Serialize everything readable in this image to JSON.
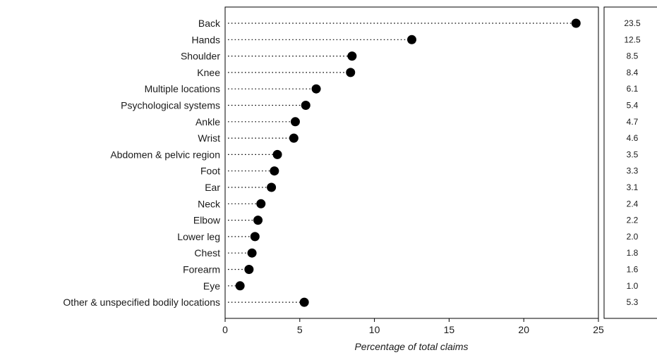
{
  "chart_data": {
    "type": "scatter",
    "orientation": "horizontal-dot-plot",
    "title": "",
    "xlabel": "Percentage of total claims",
    "ylabel": "",
    "xlim": [
      0,
      25
    ],
    "xticks": [
      0,
      5,
      10,
      15,
      20,
      25
    ],
    "grid": false,
    "categories": [
      "Back",
      "Hands",
      "Shoulder",
      "Knee",
      "Multiple locations",
      "Psychological systems",
      "Ankle",
      "Wrist",
      "Abdomen & pelvic region",
      "Foot",
      "Ear",
      "Neck",
      "Elbow",
      "Lower leg",
      "Chest",
      "Forearm",
      "Eye",
      "Other & unspecified bodily locations"
    ],
    "values": [
      23.5,
      12.5,
      8.5,
      8.4,
      6.1,
      5.4,
      4.7,
      4.6,
      3.5,
      3.3,
      3.1,
      2.4,
      2.2,
      2.0,
      1.8,
      1.6,
      1.0,
      5.3
    ],
    "value_labels": [
      "23.5",
      "12.5",
      "8.5",
      "8.4",
      "6.1",
      "5.4",
      "4.7",
      "4.6",
      "3.5",
      "3.3",
      "3.1",
      "2.4",
      "2.2",
      "2.0",
      "1.8",
      "1.6",
      "1.0",
      "5.3"
    ],
    "marker_color": "#000000"
  }
}
